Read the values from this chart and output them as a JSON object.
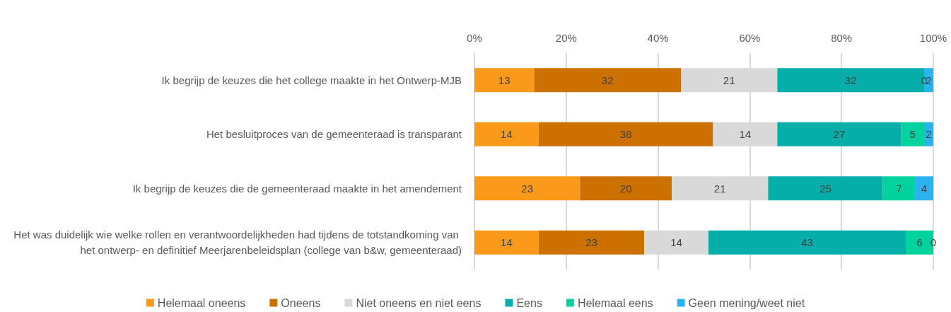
{
  "chart_data": {
    "type": "bar",
    "orientation": "horizontal",
    "stacked": true,
    "data_labels": true,
    "grid": "x",
    "legend": "bottom",
    "categories": [
      "Ik begrijp de keuzes die het college maakte in het Ontwerp-MJB",
      "Het besluitproces van de gemeenteraad is transparant",
      "Ik begrijp de keuzes die de gemeenteraad maakte in het amendement",
      "Het was duidelijk wie welke rollen en verantwoordelijkheden had tijdens de totstandkoming van het ontwerp- en definitief Meerjarenbeleidsplan (college van b&w, gemeenteraad)"
    ],
    "xlim": [
      0,
      100
    ],
    "xticks": [
      {
        "value": 0,
        "label": "0%"
      },
      {
        "value": 20,
        "label": "20%"
      },
      {
        "value": 40,
        "label": "40%"
      },
      {
        "value": 60,
        "label": "60%"
      },
      {
        "value": 80,
        "label": "80%"
      },
      {
        "value": 100,
        "label": "100%"
      }
    ],
    "series": [
      {
        "name": "Helemaal oneens",
        "color": "#fb9a1a",
        "values": [
          13,
          14,
          23,
          14
        ]
      },
      {
        "name": "Oneens",
        "color": "#cc7000",
        "values": [
          32,
          38,
          20,
          23
        ]
      },
      {
        "name": "Niet oneens en niet eens",
        "color": "#d9d9d9",
        "values": [
          21,
          14,
          21,
          14
        ]
      },
      {
        "name": "Eens",
        "color": "#05aea8",
        "values": [
          32,
          27,
          25,
          43
        ]
      },
      {
        "name": "Helemaal eens",
        "color": "#02d29e",
        "values": [
          0,
          5,
          7,
          6
        ]
      },
      {
        "name": "Geen mening/weet niet",
        "color": "#2db2f0",
        "values": [
          2,
          2,
          4,
          0
        ]
      }
    ]
  }
}
